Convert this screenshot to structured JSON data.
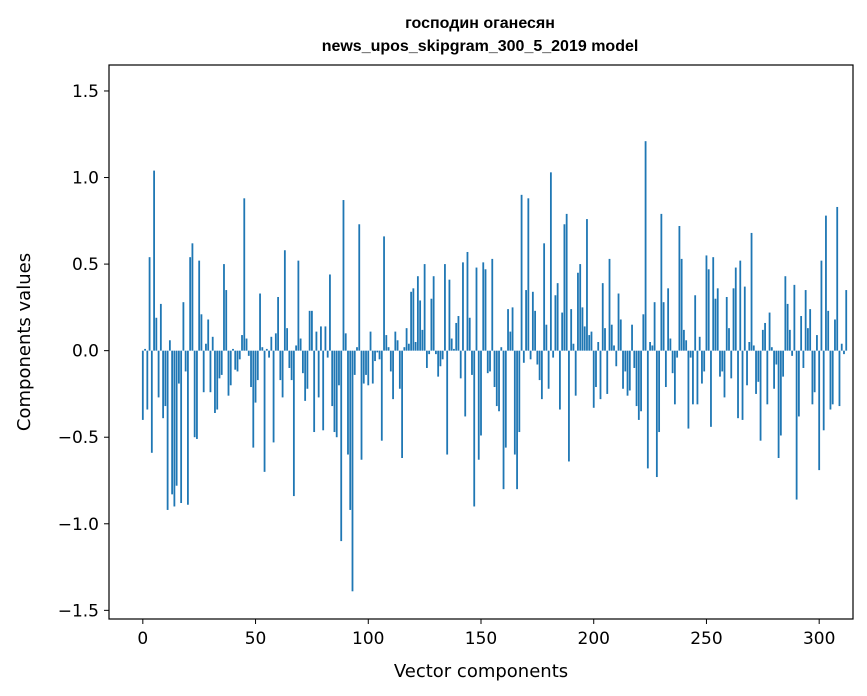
{
  "chart_data": {
    "type": "bar",
    "title": "господин оганесян",
    "subtitle": "news_upos_skipgram_300_5_2019 model",
    "xlabel": "Vector components",
    "ylabel": "Components values",
    "xlim": [
      -15,
      315
    ],
    "ylim": [
      -1.55,
      1.65
    ],
    "xticks": [
      0,
      50,
      100,
      150,
      200,
      250,
      300
    ],
    "yticks": [
      1.5,
      1.0,
      0.5,
      0.0,
      -0.5,
      -1.0,
      -1.5
    ],
    "ytick_labels": [
      "1.5",
      "1.0",
      "0.5",
      "0.0",
      "−0.5",
      "−1.0",
      "−1.5"
    ],
    "grid": false,
    "bar_color": "#1f77b4",
    "values": [
      -0.4,
      0.01,
      -0.34,
      0.54,
      -0.59,
      1.04,
      0.19,
      -0.27,
      0.27,
      -0.39,
      -0.32,
      -0.92,
      0.06,
      -0.83,
      -0.9,
      -0.78,
      -0.19,
      -0.88,
      0.28,
      -0.12,
      -0.89,
      0.54,
      0.62,
      -0.5,
      -0.51,
      0.52,
      0.21,
      -0.24,
      0.04,
      0.18,
      -0.24,
      0.08,
      -0.36,
      -0.34,
      -0.16,
      -0.14,
      0.5,
      0.35,
      -0.26,
      -0.2,
      0.01,
      -0.11,
      -0.12,
      -0.05,
      0.09,
      0.88,
      0.07,
      -0.03,
      -0.21,
      -0.56,
      -0.3,
      -0.17,
      0.33,
      0.02,
      -0.7,
      0.01,
      -0.04,
      0.08,
      -0.53,
      0.1,
      0.31,
      -0.17,
      -0.27,
      0.58,
      0.13,
      -0.1,
      -0.17,
      -0.84,
      0.03,
      0.52,
      0.07,
      -0.13,
      -0.29,
      -0.22,
      0.23,
      0.23,
      -0.47,
      0.11,
      -0.27,
      0.14,
      -0.46,
      0.14,
      -0.04,
      0.44,
      -0.32,
      -0.47,
      -0.5,
      -0.2,
      -1.1,
      0.87,
      0.1,
      -0.6,
      -0.92,
      -1.39,
      -0.14,
      0.02,
      0.73,
      -0.63,
      -0.19,
      -0.14,
      -0.2,
      0.11,
      -0.19,
      -0.06,
      -0.01,
      -0.05,
      -0.52,
      0.66,
      0.09,
      0.02,
      -0.12,
      -0.28,
      0.11,
      0.06,
      -0.22,
      -0.62,
      0.02,
      0.13,
      0.04,
      0.34,
      0.36,
      0.05,
      0.43,
      0.29,
      0.12,
      0.5,
      -0.1,
      -0.02,
      0.3,
      0.43,
      -0.02,
      -0.15,
      -0.09,
      -0.05,
      0.5,
      -0.6,
      0.41,
      0.07,
      0.01,
      0.16,
      0.2,
      -0.16,
      0.51,
      -0.38,
      0.57,
      0.19,
      -0.14,
      -0.9,
      0.48,
      -0.63,
      -0.49,
      0.51,
      0.47,
      -0.13,
      -0.12,
      0.53,
      -0.21,
      -0.32,
      -0.35,
      0.02,
      -0.8,
      -0.56,
      0.24,
      0.11,
      0.25,
      -0.6,
      -0.8,
      -0.47,
      0.9,
      -0.07,
      0.35,
      0.88,
      -0.05,
      0.34,
      0.23,
      -0.08,
      -0.17,
      -0.28,
      0.62,
      0.15,
      -0.22,
      1.03,
      -0.04,
      0.32,
      0.39,
      -0.34,
      0.22,
      0.73,
      0.79,
      -0.64,
      0.24,
      0.04,
      -0.26,
      0.45,
      0.5,
      0.25,
      0.14,
      0.76,
      0.09,
      0.11,
      -0.33,
      -0.21,
      0.05,
      -0.28,
      0.39,
      0.13,
      -0.25,
      0.53,
      0.15,
      0.03,
      -0.09,
      0.33,
      0.18,
      -0.22,
      -0.12,
      -0.26,
      -0.23,
      0.15,
      -0.1,
      -0.32,
      -0.4,
      -0.35,
      0.21,
      1.21,
      -0.68,
      0.05,
      0.03,
      0.28,
      -0.73,
      -0.47,
      0.79,
      0.28,
      -0.21,
      0.36,
      0.07,
      -0.13,
      -0.31,
      -0.04,
      0.72,
      0.53,
      0.12,
      0.06,
      -0.45,
      -0.04,
      -0.31,
      0.32,
      -0.31,
      0.08,
      -0.19,
      -0.12,
      0.55,
      0.47,
      -0.44,
      0.54,
      0.3,
      0.36,
      -0.15,
      -0.12,
      -0.27,
      0.31,
      0.13,
      -0.16,
      0.36,
      0.48,
      -0.39,
      0.52,
      -0.4,
      0.37,
      -0.2,
      0.05,
      0.68,
      0.03,
      -0.25,
      -0.18,
      -0.52,
      0.12,
      0.16,
      -0.31,
      0.22,
      0.02,
      -0.22,
      -0.08,
      -0.62,
      -0.49,
      -0.15,
      0.43,
      0.27,
      0.12,
      -0.03,
      0.38,
      -0.86,
      -0.38,
      0.2,
      -0.1,
      0.35,
      0.13,
      0.24,
      -0.31,
      -0.24,
      0.09,
      -0.69,
      0.52,
      -0.46,
      0.78,
      0.23,
      -0.34,
      -0.31,
      0.18,
      0.83,
      -0.32,
      0.04,
      -0.02,
      0.35
    ]
  }
}
